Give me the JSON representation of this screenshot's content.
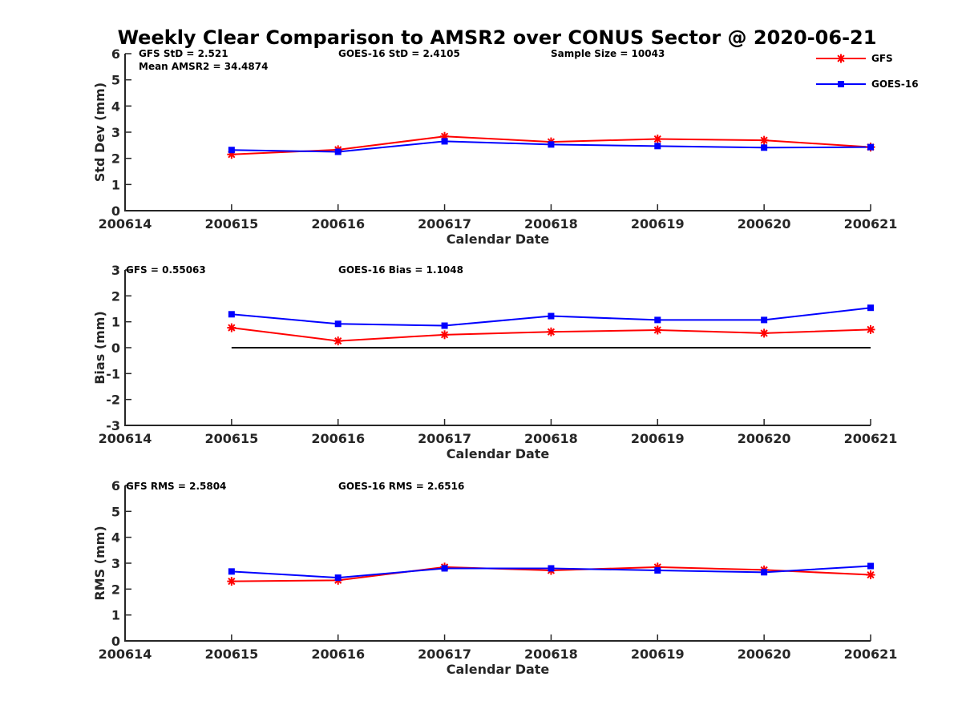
{
  "chart_data": {
    "type": "line",
    "title": "Weekly Clear Comparison to AMSR2 over CONUS Sector @ 2020-06-21",
    "legend": {
      "placement": "top-right",
      "entries": [
        {
          "name": "GFS",
          "color": "#ff0000",
          "marker": "asterisk"
        },
        {
          "name": "GOES-16",
          "color": "#0000ff",
          "marker": "square"
        }
      ]
    },
    "x": [
      "200614",
      "200615",
      "200616",
      "200617",
      "200618",
      "200619",
      "200620",
      "200621"
    ],
    "grid": false,
    "panels": [
      {
        "id": "stddev",
        "ylabel": "Std Dev (mm)",
        "xlabel": "Calendar Date",
        "ylim": [
          0,
          6
        ],
        "yticks": [
          "0",
          "1",
          "2",
          "3",
          "4",
          "5",
          "6"
        ],
        "annotations": [
          "GFS StD = 2.521",
          "GOES-16 StD = 2.4105",
          "Sample Size = 10043",
          "Mean AMSR2 = 34.4874"
        ],
        "series": [
          {
            "name": "GFS",
            "values": [
              null,
              2.15,
              2.33,
              2.84,
              2.63,
              2.74,
              2.69,
              2.43
            ]
          },
          {
            "name": "GOES-16",
            "values": [
              null,
              2.32,
              2.25,
              2.65,
              2.53,
              2.47,
              2.41,
              2.43
            ]
          }
        ]
      },
      {
        "id": "bias",
        "ylabel": "Bias (mm)",
        "xlabel": "Calendar Date",
        "ylim": [
          -3,
          3
        ],
        "yticks": [
          "-3",
          "-2",
          "-1",
          "0",
          "1",
          "2",
          "3"
        ],
        "zero_line": true,
        "annotations": [
          "GFS = 0.55063",
          "GOES-16 Bias  = 1.1048"
        ],
        "series": [
          {
            "name": "GFS",
            "values": [
              null,
              0.77,
              0.26,
              0.5,
              0.61,
              0.68,
              0.56,
              0.7
            ]
          },
          {
            "name": "GOES-16",
            "values": [
              null,
              1.29,
              0.92,
              0.85,
              1.22,
              1.07,
              1.07,
              1.54
            ]
          }
        ]
      },
      {
        "id": "rms",
        "ylabel": "RMS (mm)",
        "xlabel": "Calendar Date",
        "ylim": [
          0,
          6
        ],
        "yticks": [
          "0",
          "1",
          "2",
          "3",
          "4",
          "5",
          "6"
        ],
        "annotations": [
          "GFS RMS = 2.5804",
          "GOES-16 RMS = 2.6516"
        ],
        "series": [
          {
            "name": "GFS",
            "values": [
              null,
              2.3,
              2.34,
              2.85,
              2.72,
              2.85,
              2.74,
              2.55
            ]
          },
          {
            "name": "GOES-16",
            "values": [
              null,
              2.68,
              2.44,
              2.8,
              2.8,
              2.72,
              2.65,
              2.89
            ]
          }
        ]
      }
    ]
  }
}
